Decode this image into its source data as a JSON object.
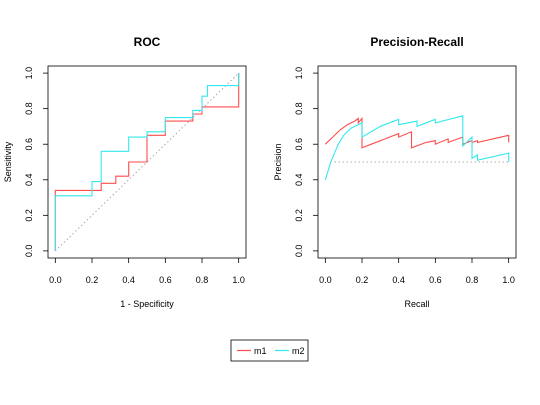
{
  "colors": {
    "m1": "#ff4d4d",
    "m2": "#33e8ee",
    "baseline": "#aaaaaa",
    "axis": "#000000"
  },
  "legend": {
    "placement": "bottom-center",
    "entries": [
      {
        "name": "m1",
        "color": "#ff4d4d"
      },
      {
        "name": "m2",
        "color": "#33e8ee"
      }
    ]
  },
  "chart_data": [
    {
      "type": "line",
      "title": "ROC",
      "xlabel": "1 - Specificity",
      "ylabel": "Sensitivity",
      "xlim": [
        0,
        1
      ],
      "ylim": [
        0,
        1
      ],
      "xticks": [
        "0.0",
        "0.2",
        "0.4",
        "0.6",
        "0.8",
        "1.0"
      ],
      "yticks": [
        "0.0",
        "0.2",
        "0.4",
        "0.6",
        "0.8",
        "1.0"
      ],
      "grid": false,
      "baseline": {
        "style": "dotted",
        "points": [
          [
            0,
            0
          ],
          [
            1,
            1
          ]
        ]
      },
      "series": [
        {
          "name": "m1",
          "color": "#ff4d4d",
          "points": [
            [
              0,
              0
            ],
            [
              0,
              0.34
            ],
            [
              0.25,
              0.34
            ],
            [
              0.25,
              0.38
            ],
            [
              0.33,
              0.38
            ],
            [
              0.33,
              0.42
            ],
            [
              0.4,
              0.42
            ],
            [
              0.4,
              0.5
            ],
            [
              0.5,
              0.5
            ],
            [
              0.5,
              0.65
            ],
            [
              0.6,
              0.65
            ],
            [
              0.6,
              0.73
            ],
            [
              0.75,
              0.73
            ],
            [
              0.75,
              0.77
            ],
            [
              0.8,
              0.77
            ],
            [
              0.8,
              0.81
            ],
            [
              1,
              0.81
            ],
            [
              1,
              1
            ]
          ]
        },
        {
          "name": "m2",
          "color": "#33e8ee",
          "points": [
            [
              0,
              0
            ],
            [
              0,
              0.31
            ],
            [
              0.2,
              0.31
            ],
            [
              0.2,
              0.39
            ],
            [
              0.25,
              0.39
            ],
            [
              0.25,
              0.56
            ],
            [
              0.4,
              0.56
            ],
            [
              0.4,
              0.64
            ],
            [
              0.5,
              0.64
            ],
            [
              0.5,
              0.67
            ],
            [
              0.6,
              0.67
            ],
            [
              0.6,
              0.75
            ],
            [
              0.75,
              0.75
            ],
            [
              0.75,
              0.79
            ],
            [
              0.8,
              0.79
            ],
            [
              0.8,
              0.87
            ],
            [
              0.83,
              0.87
            ],
            [
              0.83,
              0.93
            ],
            [
              1,
              0.93
            ],
            [
              1,
              1
            ]
          ]
        }
      ]
    },
    {
      "type": "line",
      "title": "Precision-Recall",
      "xlabel": "Recall",
      "ylabel": "Precision",
      "xlim": [
        0,
        1
      ],
      "ylim": [
        0,
        1
      ],
      "xticks": [
        "0.0",
        "0.2",
        "0.4",
        "0.6",
        "0.8",
        "1.0"
      ],
      "yticks": [
        "0.0",
        "0.2",
        "0.4",
        "0.6",
        "0.8",
        "1.0"
      ],
      "grid": false,
      "baseline": {
        "style": "dotted",
        "points": [
          [
            0.05,
            0.5
          ],
          [
            1,
            0.5
          ]
        ]
      },
      "series": [
        {
          "name": "m1",
          "color": "#ff4d4d",
          "points": [
            [
              0,
              0.6
            ],
            [
              0.04,
              0.64
            ],
            [
              0.08,
              0.68
            ],
            [
              0.12,
              0.71
            ],
            [
              0.16,
              0.73
            ],
            [
              0.18,
              0.745
            ],
            [
              0.18,
              0.72
            ],
            [
              0.2,
              0.745
            ],
            [
              0.2,
              0.58
            ],
            [
              0.3,
              0.62
            ],
            [
              0.4,
              0.66
            ],
            [
              0.4,
              0.64
            ],
            [
              0.47,
              0.67
            ],
            [
              0.47,
              0.58
            ],
            [
              0.55,
              0.61
            ],
            [
              0.6,
              0.62
            ],
            [
              0.6,
              0.6
            ],
            [
              0.67,
              0.63
            ],
            [
              0.67,
              0.61
            ],
            [
              0.75,
              0.64
            ],
            [
              0.75,
              0.6
            ],
            [
              0.8,
              0.62
            ],
            [
              0.8,
              0.61
            ],
            [
              0.83,
              0.62
            ],
            [
              0.83,
              0.61
            ],
            [
              1,
              0.65
            ],
            [
              1,
              0.61
            ]
          ]
        },
        {
          "name": "m2",
          "color": "#33e8ee",
          "points": [
            [
              0,
              0.4
            ],
            [
              0.03,
              0.5
            ],
            [
              0.07,
              0.6
            ],
            [
              0.1,
              0.65
            ],
            [
              0.14,
              0.69
            ],
            [
              0.2,
              0.72
            ],
            [
              0.2,
              0.64
            ],
            [
              0.3,
              0.7
            ],
            [
              0.4,
              0.74
            ],
            [
              0.4,
              0.71
            ],
            [
              0.5,
              0.73
            ],
            [
              0.5,
              0.7
            ],
            [
              0.6,
              0.74
            ],
            [
              0.6,
              0.72
            ],
            [
              0.75,
              0.76
            ],
            [
              0.75,
              0.59
            ],
            [
              0.8,
              0.64
            ],
            [
              0.8,
              0.52
            ],
            [
              0.83,
              0.54
            ],
            [
              0.83,
              0.51
            ],
            [
              1,
              0.55
            ],
            [
              1,
              0.5
            ]
          ]
        }
      ]
    }
  ]
}
